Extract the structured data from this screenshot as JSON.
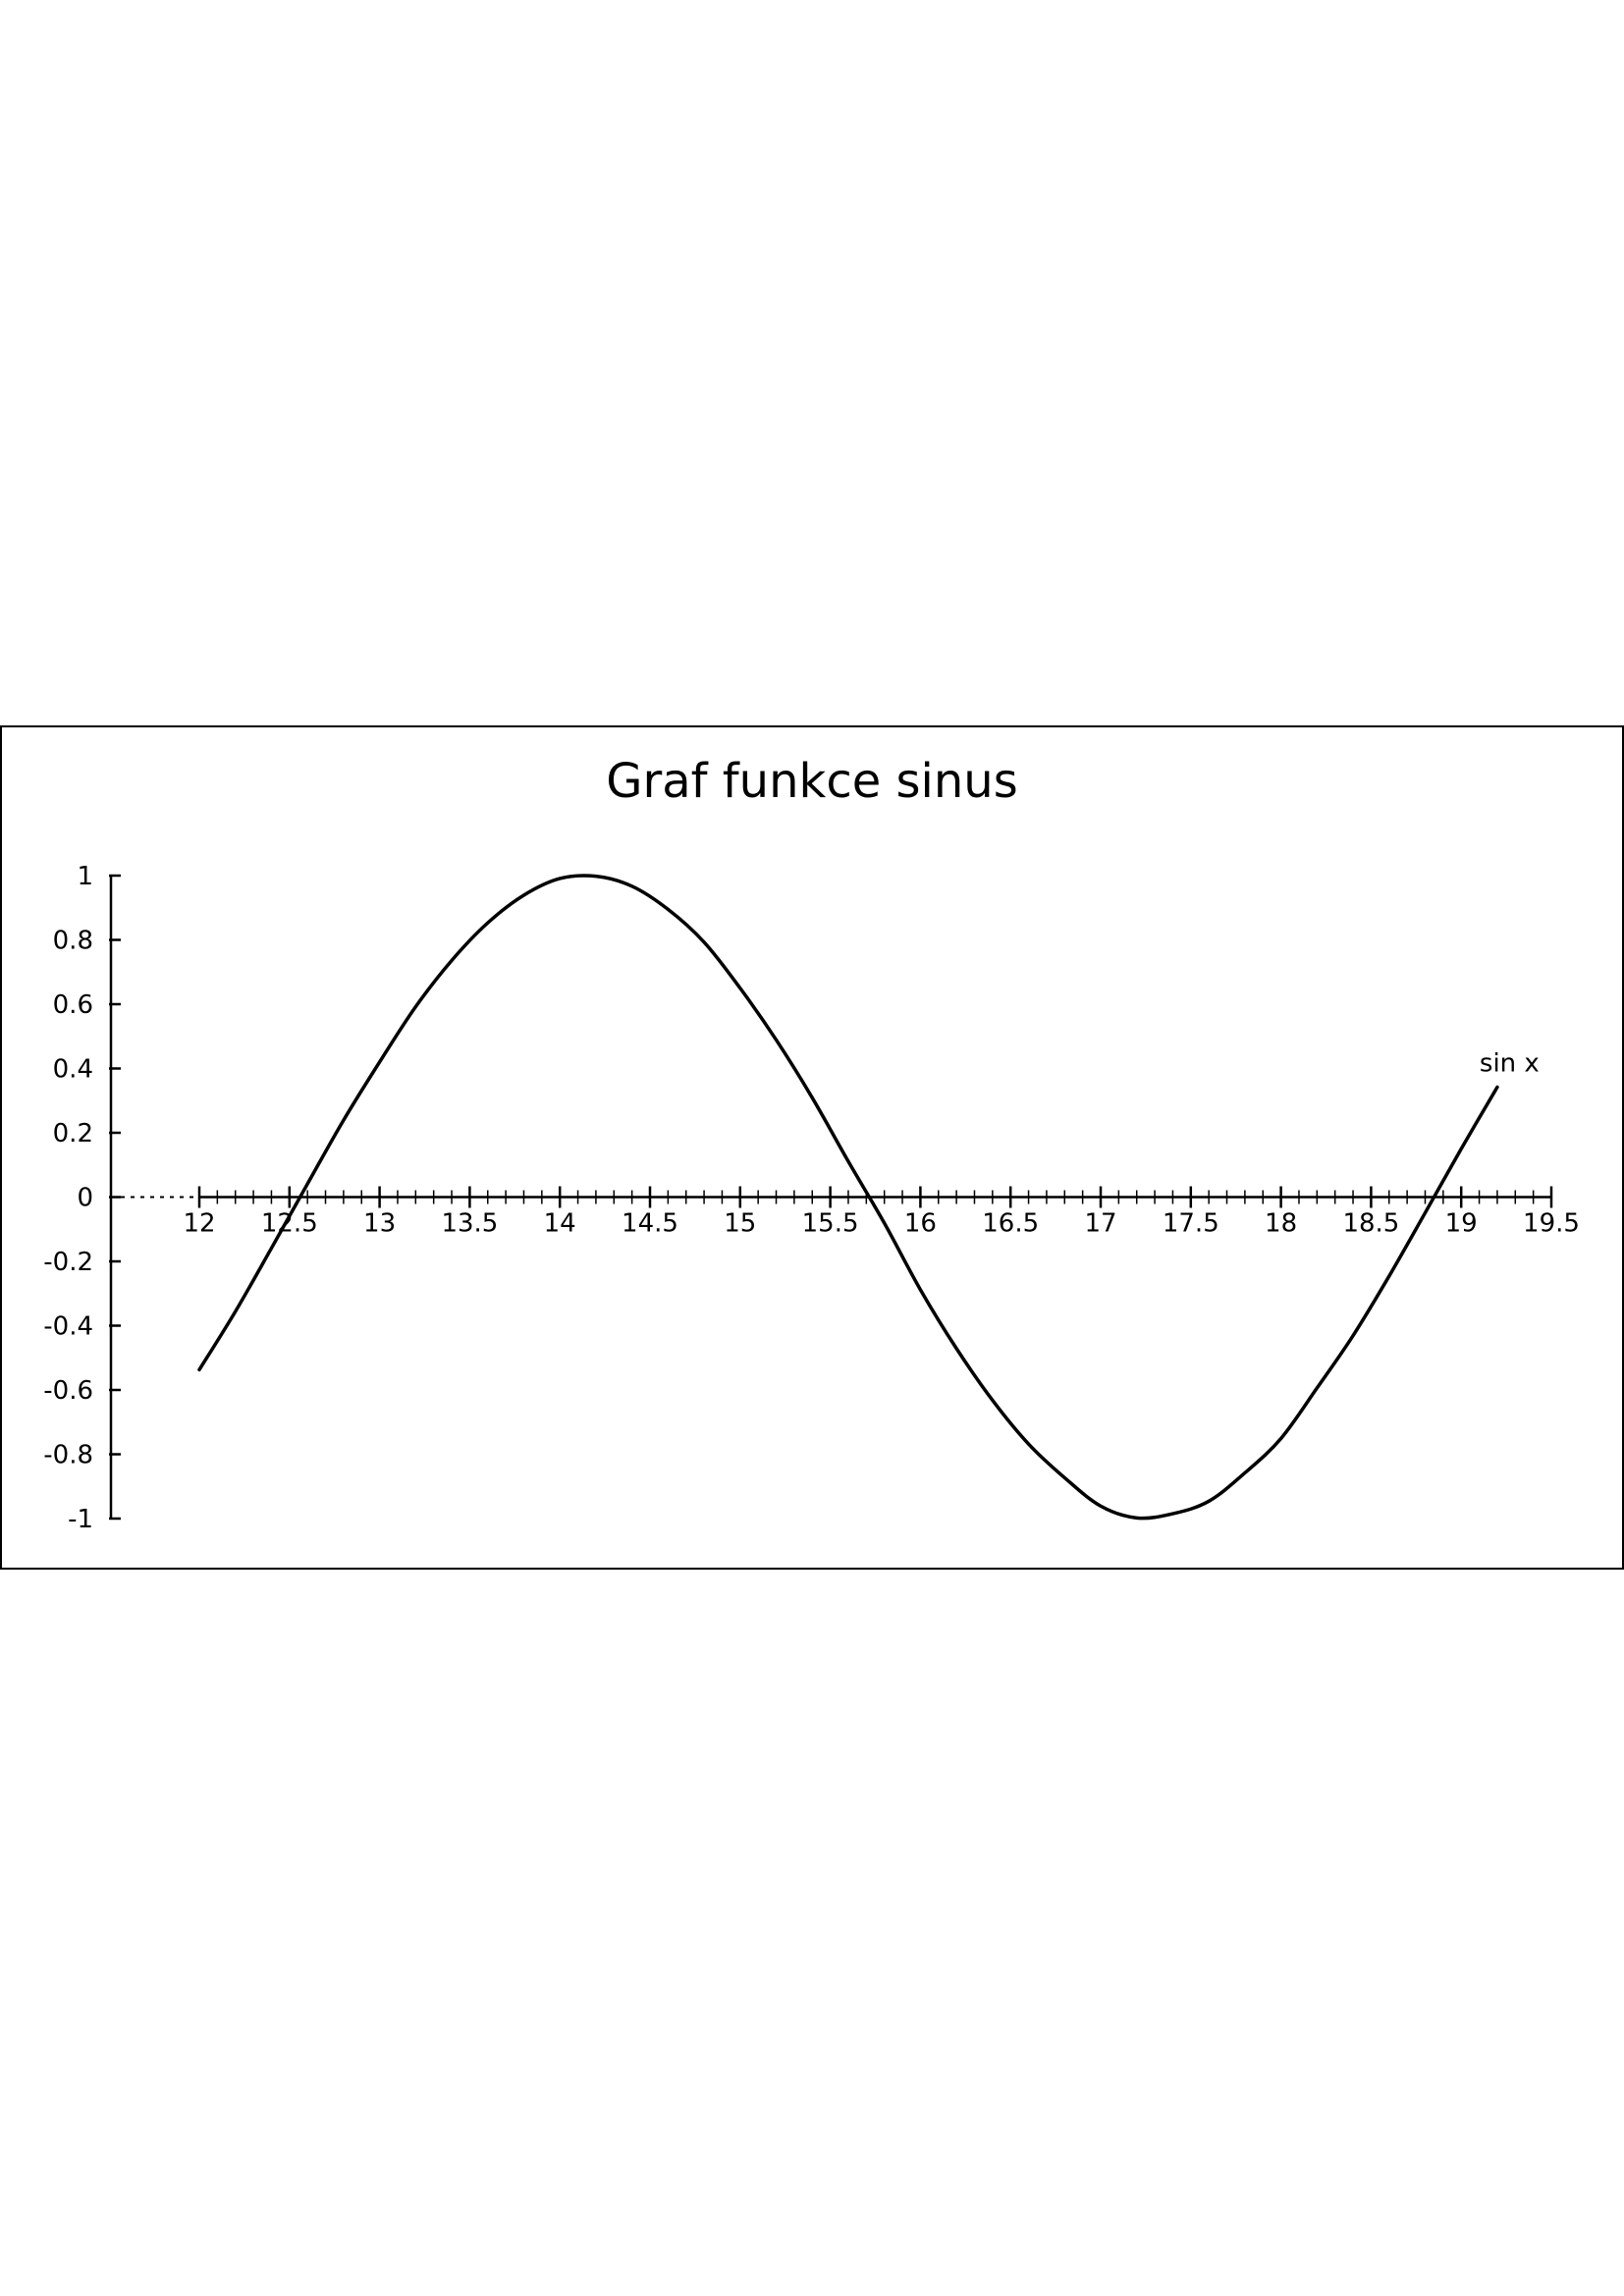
{
  "chart_data": {
    "type": "line",
    "title": "Graf funkce sinus",
    "xlabel": "",
    "ylabel": "",
    "xlim": [
      12,
      19.5
    ],
    "ylim": [
      -1,
      1
    ],
    "x_ticks": [
      12,
      12.5,
      13,
      13.5,
      14,
      14.5,
      15,
      15.5,
      16,
      16.5,
      17,
      17.5,
      18,
      18.5,
      19,
      19.5
    ],
    "x_tick_labels": [
      "12",
      "12.5",
      "13",
      "13.5",
      "14",
      "14.5",
      "15",
      "15.5",
      "16",
      "16.5",
      "17",
      "17.5",
      "18",
      "18.5",
      "19",
      "19.5"
    ],
    "x_minor_step": 0.1,
    "y_ticks": [
      1,
      0.8,
      0.6,
      0.4,
      0.2,
      0,
      -0.2,
      -0.4,
      -0.6,
      -0.8,
      -1
    ],
    "y_tick_labels": [
      "1",
      "0.8",
      "0.6",
      "0.4",
      "0.2",
      "0",
      "-0.2",
      "-0.4",
      "-0.6",
      "-0.8",
      "-1"
    ],
    "grid": false,
    "series": [
      {
        "name": "sin x",
        "x": [
          12.0,
          12.2,
          12.4,
          12.6,
          12.8,
          13.0,
          13.2,
          13.4,
          13.6,
          13.8,
          14.0,
          14.2,
          14.4,
          14.6,
          14.8,
          15.0,
          15.2,
          15.4,
          15.6,
          15.8,
          16.0,
          16.2,
          16.4,
          16.6,
          16.8,
          17.0,
          17.2,
          17.4,
          17.6,
          17.8,
          18.0,
          18.2,
          18.4,
          18.6,
          18.8,
          19.0,
          19.2
        ],
        "y": [
          -0.537,
          -0.356,
          -0.159,
          0.041,
          0.239,
          0.42,
          0.592,
          0.736,
          0.853,
          0.939,
          0.991,
          0.998,
          0.967,
          0.895,
          0.793,
          0.65,
          0.489,
          0.309,
          0.111,
          -0.081,
          -0.288,
          -0.471,
          -0.632,
          -0.768,
          -0.873,
          -0.961,
          -0.998,
          -0.985,
          -0.946,
          -0.858,
          -0.751,
          -0.594,
          -0.431,
          -0.246,
          -0.049,
          0.15,
          0.342
        ]
      }
    ]
  }
}
